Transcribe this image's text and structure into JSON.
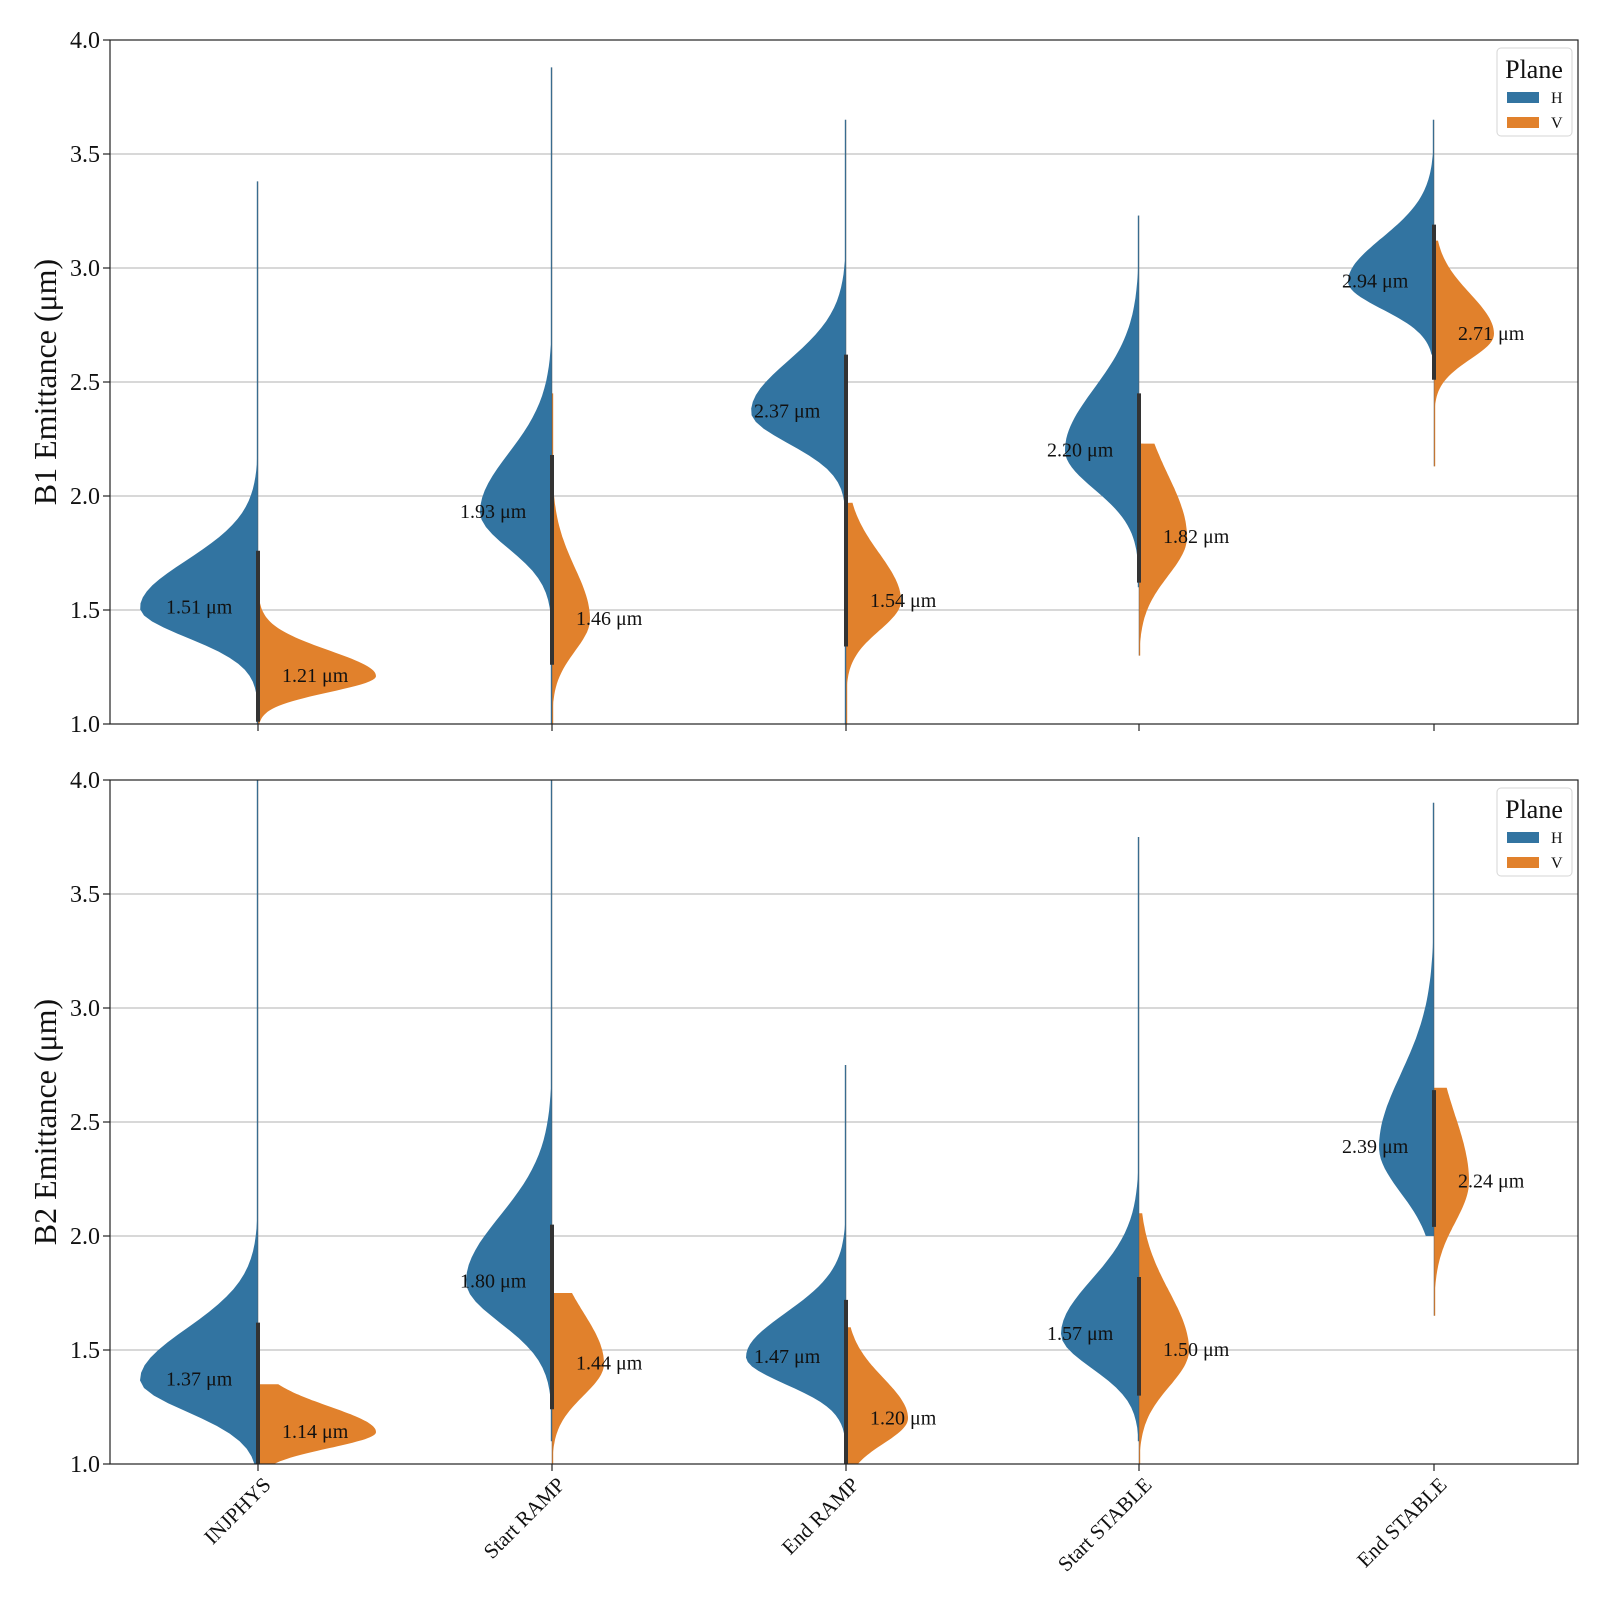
{
  "chart_data": [
    {
      "type": "violin",
      "split": true,
      "ylabel": "B1 Emittance (μm)",
      "ylim": [
        1.0,
        4.0
      ],
      "yticks": [
        1.0,
        1.5,
        2.0,
        2.5,
        3.0,
        3.5,
        4.0
      ],
      "grid": "horizontal",
      "categories": [
        "INJPHYS",
        "Start RAMP",
        "End RAMP",
        "Start STABLE",
        "End STABLE"
      ],
      "show_category_labels": false,
      "legend": {
        "title": "Plane",
        "position": "top-right",
        "entries": [
          "H",
          "V"
        ]
      },
      "series": [
        {
          "name": "H",
          "color": "#3274a1",
          "side": "left",
          "medians": [
            1.51,
            1.93,
            2.37,
            2.2,
            2.94
          ],
          "min": [
            1.0,
            1.0,
            1.0,
            1.6,
            2.62
          ],
          "max": [
            3.38,
            3.88,
            3.65,
            3.23,
            3.65
          ],
          "medians_label": [
            "1.51",
            "1.93",
            "2.37",
            "2.20",
            "2.94"
          ]
        },
        {
          "name": "V",
          "color": "#e1812c",
          "side": "right",
          "medians": [
            1.21,
            1.46,
            1.54,
            1.82,
            2.71
          ],
          "min": [
            1.0,
            1.0,
            1.0,
            1.3,
            2.13
          ],
          "max": [
            1.6,
            2.45,
            1.97,
            2.23,
            3.12
          ],
          "medians_label": [
            "1.21",
            "1.46",
            "1.54",
            "1.82",
            "2.71"
          ]
        }
      ]
    },
    {
      "type": "violin",
      "split": true,
      "ylabel": "B2 Emittance (μm)",
      "ylim": [
        1.0,
        4.0
      ],
      "yticks": [
        1.0,
        1.5,
        2.0,
        2.5,
        3.0,
        3.5,
        4.0
      ],
      "grid": "horizontal",
      "categories": [
        "INJPHYS",
        "Start RAMP",
        "End RAMP",
        "Start STABLE",
        "End STABLE"
      ],
      "show_category_labels": true,
      "legend": {
        "title": "Plane",
        "position": "top-right",
        "entries": [
          "H",
          "V"
        ]
      },
      "series": [
        {
          "name": "H",
          "color": "#3274a1",
          "side": "left",
          "medians": [
            1.37,
            1.8,
            1.47,
            1.57,
            2.39
          ],
          "min": [
            1.0,
            1.1,
            1.0,
            1.1,
            2.0
          ],
          "max": [
            4.0,
            4.0,
            2.75,
            3.75,
            3.9
          ],
          "medians_label": [
            "1.37",
            "1.80",
            "1.47",
            "1.57",
            "2.39"
          ]
        },
        {
          "name": "V",
          "color": "#e1812c",
          "side": "right",
          "medians": [
            1.14,
            1.44,
            1.2,
            1.5,
            2.24
          ],
          "min": [
            1.0,
            1.0,
            1.0,
            1.0,
            1.65
          ],
          "max": [
            1.35,
            1.75,
            1.6,
            2.1,
            2.65
          ],
          "medians_label": [
            "1.14",
            "1.44",
            "1.20",
            "1.50",
            "2.24"
          ]
        }
      ]
    }
  ],
  "annotation_unit": "μm"
}
